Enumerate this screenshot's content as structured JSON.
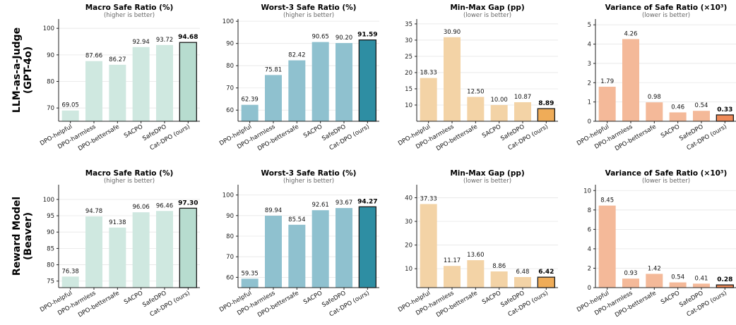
{
  "row_labels": [
    [
      "LLM-as-a-Judge",
      "(GPT-4o)"
    ],
    [
      "Reward Model",
      "(Beaver)"
    ]
  ],
  "colors": {
    "macro": "#cfe8e0",
    "worst3": "#8fc1cf",
    "gap": "#f3d3a6",
    "variance": "#f4b999",
    "macro_best": "#b7dccf",
    "worst3_best": "#2e8ea3",
    "gap_best": "#efac58",
    "variance_best": "#ee8a58"
  },
  "chart_data": [
    {
      "type": "bar",
      "row": 0,
      "col": 0,
      "color_key": "macro",
      "title": "Macro Safe Ratio (%)",
      "subtitle": "(higher is better)",
      "categories": [
        "DPO-helpful",
        "DPO-harmless",
        "DPO-bettersafe",
        "SACPO",
        "SafeDPO",
        "Cat-DPO (ours)"
      ],
      "values": [
        69.05,
        87.66,
        86.27,
        92.94,
        93.72,
        94.68
      ],
      "value_labels": [
        "69.05",
        "87.66",
        "86.27",
        "92.94",
        "93.72",
        "94.68"
      ],
      "ylim": [
        65,
        103.5
      ],
      "yticks": [
        "70",
        "80",
        "90",
        "100"
      ],
      "best_index": 5
    },
    {
      "type": "bar",
      "row": 0,
      "col": 1,
      "color_key": "worst3",
      "title": "Worst-3 Safe Ratio (%)",
      "subtitle": "(higher is better)",
      "categories": [
        "DPO-helpful",
        "DPO-harmless",
        "DPO-bettersafe",
        "SACPO",
        "SafeDPO",
        "Cat-DPO (ours)"
      ],
      "values": [
        62.39,
        75.81,
        82.42,
        90.65,
        90.2,
        91.59
      ],
      "value_labels": [
        "62.39",
        "75.81",
        "82.42",
        "90.65",
        "90.20",
        "91.59"
      ],
      "ylim": [
        55,
        101
      ],
      "yticks": [
        "60",
        "70",
        "80",
        "90",
        "100"
      ],
      "best_index": 5
    },
    {
      "type": "bar",
      "row": 0,
      "col": 2,
      "color_key": "gap",
      "title": "Min-Max Gap (pp)",
      "subtitle": "(lower is better)",
      "categories": [
        "DPO-helpful",
        "DPO-harmless",
        "DPO-bettersafe",
        "SACPO",
        "SafeDPO",
        "Cat-DPO (ours)"
      ],
      "values": [
        18.33,
        30.9,
        12.5,
        10.0,
        10.87,
        8.89
      ],
      "value_labels": [
        "18.33",
        "30.90",
        "12.50",
        "10.00",
        "10.87",
        "8.89"
      ],
      "ylim": [
        5,
        36.5
      ],
      "yticks": [
        "10",
        "15",
        "20",
        "25",
        "30",
        "35"
      ],
      "best_index": 5
    },
    {
      "type": "bar",
      "row": 0,
      "col": 3,
      "color_key": "variance",
      "title": "Variance of Safe Ratio (×10³)",
      "subtitle": "(lower is better)",
      "categories": [
        "DPO-helpful",
        "DPO-harmless",
        "DPO-bettersafe",
        "SACPO",
        "SafeDPO",
        "Cat-DPO (ours)"
      ],
      "values": [
        1.79,
        4.26,
        0.98,
        0.46,
        0.54,
        0.33
      ],
      "value_labels": [
        "1.79",
        "4.26",
        "0.98",
        "0.46",
        "0.54",
        "0.33"
      ],
      "ylim": [
        0,
        5.3
      ],
      "yticks": [
        "0",
        "1",
        "2",
        "3",
        "4",
        "5"
      ],
      "best_index": 5
    },
    {
      "type": "bar",
      "row": 1,
      "col": 0,
      "color_key": "macro",
      "title": "Macro Safe Ratio (%)",
      "subtitle": "(higher is better)",
      "categories": [
        "DPO-helpful",
        "DPO-harmless",
        "DPO-bettersafe",
        "SACPO",
        "SafeDPO",
        "Cat-DPO (ours)"
      ],
      "values": [
        76.38,
        94.78,
        91.38,
        96.06,
        96.46,
        97.3
      ],
      "value_labels": [
        "76.38",
        "94.78",
        "91.38",
        "96.06",
        "96.46",
        "97.30"
      ],
      "ylim": [
        73,
        104.5
      ],
      "yticks": [
        "75",
        "80",
        "85",
        "90",
        "95",
        "100"
      ],
      "best_index": 5
    },
    {
      "type": "bar",
      "row": 1,
      "col": 1,
      "color_key": "worst3",
      "title": "Worst-3 Safe Ratio (%)",
      "subtitle": "(higher is better)",
      "categories": [
        "DPO-helpful",
        "DPO-harmless",
        "DPO-bettersafe",
        "SACPO",
        "SafeDPO",
        "Cat-DPO (ours)"
      ],
      "values": [
        59.35,
        89.94,
        85.54,
        92.61,
        93.67,
        94.27
      ],
      "value_labels": [
        "59.35",
        "89.94",
        "85.54",
        "92.61",
        "93.67",
        "94.27"
      ],
      "ylim": [
        55,
        105
      ],
      "yticks": [
        "60",
        "70",
        "80",
        "90",
        "100"
      ],
      "best_index": 5
    },
    {
      "type": "bar",
      "row": 1,
      "col": 2,
      "color_key": "gap",
      "title": "Min-Max Gap (pp)",
      "subtitle": "(lower is better)",
      "categories": [
        "DPO-helpful",
        "DPO-harmless",
        "DPO-bettersafe",
        "SACPO",
        "SafeDPO",
        "Cat-DPO (ours)"
      ],
      "values": [
        37.33,
        11.17,
        13.6,
        8.86,
        6.48,
        6.42
      ],
      "value_labels": [
        "37.33",
        "11.17",
        "13.60",
        "8.86",
        "6.48",
        "6.42"
      ],
      "ylim": [
        2,
        45.5
      ],
      "yticks": [
        "10",
        "20",
        "30",
        "40"
      ],
      "best_index": 5
    },
    {
      "type": "bar",
      "row": 1,
      "col": 3,
      "color_key": "variance",
      "title": "Variance of Safe Ratio (×10³)",
      "subtitle": "(lower is better)",
      "categories": [
        "DPO-helpful",
        "DPO-harmless",
        "DPO-bettersafe",
        "SACPO",
        "SafeDPO",
        "Cat-DPO (ours)"
      ],
      "values": [
        8.45,
        0.93,
        1.42,
        0.54,
        0.41,
        0.28
      ],
      "value_labels": [
        "8.45",
        "0.93",
        "1.42",
        "0.54",
        "0.41",
        "0.28"
      ],
      "ylim": [
        0,
        10.6
      ],
      "yticks": [
        "0",
        "2",
        "4",
        "6",
        "8",
        "10"
      ],
      "best_index": 5
    }
  ]
}
